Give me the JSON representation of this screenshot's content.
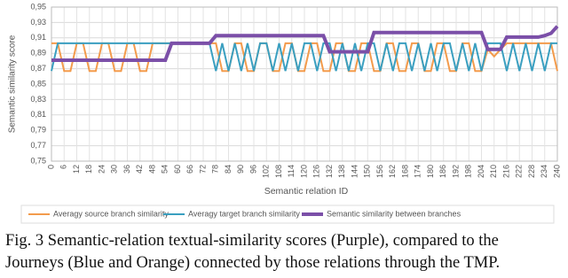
{
  "chart_data": {
    "type": "line",
    "y_label": "Semantic similarity  score",
    "x_label": "Semantic relation ID",
    "x": [
      0,
      3,
      6,
      9,
      12,
      15,
      18,
      21,
      24,
      27,
      30,
      33,
      36,
      39,
      42,
      45,
      48,
      51,
      54,
      57,
      60,
      63,
      66,
      69,
      72,
      75,
      78,
      81,
      84,
      87,
      90,
      93,
      96,
      99,
      102,
      105,
      108,
      111,
      114,
      117,
      120,
      123,
      126,
      129,
      132,
      135,
      138,
      141,
      144,
      147,
      150,
      153,
      156,
      159,
      162,
      165,
      168,
      171,
      174,
      177,
      180,
      183,
      186,
      189,
      192,
      195,
      198,
      201,
      204,
      207,
      210,
      213,
      216,
      219,
      222,
      225,
      228,
      231,
      234,
      237,
      240
    ],
    "series": [
      {
        "name": "Averagy source branch similarity",
        "color": "#f39b4c",
        "width": 2,
        "values": [
          0.903,
          0.903,
          0.867,
          0.867,
          0.903,
          0.903,
          0.867,
          0.867,
          0.903,
          0.903,
          0.867,
          0.867,
          0.903,
          0.903,
          0.867,
          0.867,
          0.903,
          0.903,
          0.903,
          0.903,
          0.903,
          0.903,
          0.903,
          0.903,
          0.903,
          0.903,
          0.903,
          0.867,
          0.867,
          0.903,
          0.903,
          0.867,
          0.867,
          0.903,
          0.903,
          0.867,
          0.867,
          0.903,
          0.903,
          0.867,
          0.867,
          0.903,
          0.903,
          0.867,
          0.867,
          0.903,
          0.903,
          0.867,
          0.867,
          0.903,
          0.903,
          0.867,
          0.867,
          0.903,
          0.903,
          0.867,
          0.867,
          0.903,
          0.903,
          0.867,
          0.867,
          0.903,
          0.903,
          0.867,
          0.867,
          0.903,
          0.903,
          0.867,
          0.867,
          0.895,
          0.886,
          0.895,
          0.903,
          0.903,
          0.903,
          0.903,
          0.903,
          0.903,
          0.903,
          0.903,
          0.867
        ]
      },
      {
        "name": "Averagy target branch similarity",
        "color": "#3a9fc0",
        "width": 2,
        "values": [
          0.867,
          0.903,
          0.903,
          0.903,
          0.903,
          0.903,
          0.903,
          0.903,
          0.903,
          0.903,
          0.903,
          0.903,
          0.903,
          0.903,
          0.903,
          0.903,
          0.903,
          0.903,
          0.903,
          0.903,
          0.903,
          0.903,
          0.903,
          0.903,
          0.903,
          0.903,
          0.867,
          0.903,
          0.867,
          0.903,
          0.867,
          0.903,
          0.867,
          0.903,
          0.903,
          0.867,
          0.903,
          0.867,
          0.903,
          0.867,
          0.903,
          0.903,
          0.867,
          0.903,
          0.903,
          0.867,
          0.903,
          0.867,
          0.903,
          0.867,
          0.903,
          0.903,
          0.867,
          0.903,
          0.867,
          0.903,
          0.903,
          0.867,
          0.903,
          0.867,
          0.903,
          0.867,
          0.903,
          0.903,
          0.867,
          0.903,
          0.867,
          0.903,
          0.867,
          0.903,
          0.903,
          0.903,
          0.867,
          0.903,
          0.867,
          0.903,
          0.867,
          0.903,
          0.867,
          0.903,
          0.903
        ]
      },
      {
        "name": "Semantic similarity between branches",
        "color": "#7b4fa8",
        "width": 4,
        "values": [
          0.881,
          0.881,
          0.881,
          0.881,
          0.881,
          0.881,
          0.881,
          0.881,
          0.881,
          0.881,
          0.881,
          0.881,
          0.881,
          0.881,
          0.881,
          0.881,
          0.881,
          0.881,
          0.881,
          0.903,
          0.903,
          0.903,
          0.903,
          0.903,
          0.903,
          0.903,
          0.913,
          0.913,
          0.913,
          0.913,
          0.913,
          0.913,
          0.913,
          0.913,
          0.913,
          0.913,
          0.913,
          0.913,
          0.913,
          0.913,
          0.913,
          0.913,
          0.913,
          0.913,
          0.892,
          0.892,
          0.892,
          0.892,
          0.892,
          0.892,
          0.892,
          0.917,
          0.917,
          0.917,
          0.917,
          0.917,
          0.917,
          0.917,
          0.917,
          0.917,
          0.917,
          0.917,
          0.917,
          0.917,
          0.917,
          0.917,
          0.917,
          0.917,
          0.917,
          0.895,
          0.895,
          0.895,
          0.911,
          0.911,
          0.911,
          0.911,
          0.911,
          0.911,
          0.913,
          0.916,
          0.925
        ]
      }
    ],
    "xlim": [
      0,
      240
    ],
    "xticks": [
      0,
      6,
      12,
      18,
      24,
      30,
      36,
      42,
      48,
      54,
      60,
      66,
      72,
      78,
      84,
      90,
      96,
      102,
      108,
      114,
      120,
      126,
      132,
      138,
      144,
      150,
      156,
      162,
      168,
      174,
      180,
      186,
      192,
      198,
      204,
      210,
      216,
      222,
      228,
      234,
      240
    ],
    "ylim": [
      0.75,
      0.95
    ],
    "yticks": [
      {
        "value": 0.75,
        "label": "0,75"
      },
      {
        "value": 0.77,
        "label": "0,77"
      },
      {
        "value": 0.79,
        "label": "0,79"
      },
      {
        "value": 0.81,
        "label": "0,81"
      },
      {
        "value": 0.83,
        "label": "0,83"
      },
      {
        "value": 0.85,
        "label": "0,85"
      },
      {
        "value": 0.87,
        "label": "0,87"
      },
      {
        "value": 0.89,
        "label": "0,89"
      },
      {
        "value": 0.91,
        "label": "0,91"
      },
      {
        "value": 0.93,
        "label": "0,93"
      },
      {
        "value": 0.95,
        "label": "0,95"
      }
    ],
    "grid": true,
    "legend": "bottom"
  },
  "caption": [
    "Fig.  3  Semantic-relation textual-similarity scores (Purple), compared to the",
    "Journeys (Blue and Orange) connected by those relations through the TMP."
  ]
}
